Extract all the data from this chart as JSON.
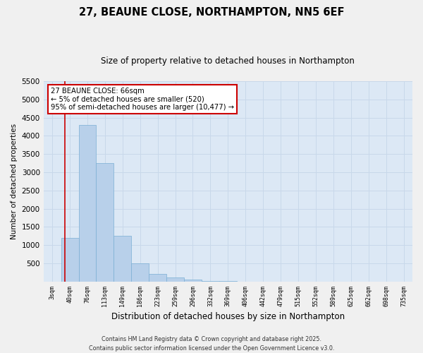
{
  "title": "27, BEAUNE CLOSE, NORTHAMPTON, NN5 6EF",
  "subtitle": "Size of property relative to detached houses in Northampton",
  "xlabel": "Distribution of detached houses by size in Northampton",
  "ylabel": "Number of detached properties",
  "footer_line1": "Contains HM Land Registry data © Crown copyright and database right 2025.",
  "footer_line2": "Contains public sector information licensed under the Open Government Licence v3.0.",
  "annotation_title": "27 BEAUNE CLOSE: 66sqm",
  "annotation_line1": "← 5% of detached houses are smaller (520)",
  "annotation_line2": "95% of semi-detached houses are larger (10,477) →",
  "bar_color": "#b8d0ea",
  "bar_edge_color": "#7aafd4",
  "grid_color": "#c8d8ea",
  "background_color": "#dce8f5",
  "fig_background": "#f0f0f0",
  "vline_color": "#cc0000",
  "categories": [
    "3sqm",
    "40sqm",
    "76sqm",
    "113sqm",
    "149sqm",
    "186sqm",
    "223sqm",
    "259sqm",
    "296sqm",
    "332sqm",
    "369sqm",
    "406sqm",
    "442sqm",
    "479sqm",
    "515sqm",
    "552sqm",
    "589sqm",
    "625sqm",
    "662sqm",
    "698sqm",
    "735sqm"
  ],
  "values": [
    0,
    1200,
    4300,
    3250,
    1250,
    500,
    200,
    110,
    60,
    25,
    10,
    0,
    0,
    0,
    0,
    0,
    0,
    0,
    0,
    0,
    0
  ],
  "ylim": [
    0,
    5500
  ],
  "yticks": [
    0,
    500,
    1000,
    1500,
    2000,
    2500,
    3000,
    3500,
    4000,
    4500,
    5000,
    5500
  ],
  "vline_x": 0.72
}
